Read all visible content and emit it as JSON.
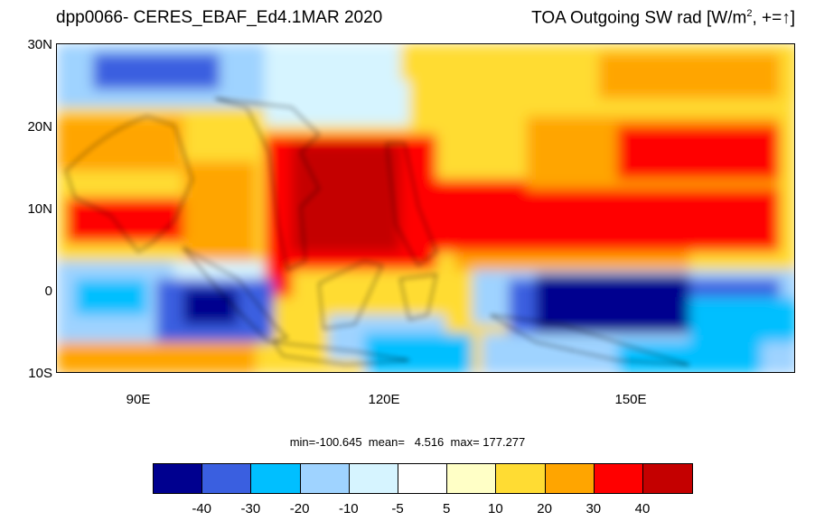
{
  "title": "dpp0066- CERES_EBAF_Ed4.1MAR 2020",
  "variable_title": "TOA Outgoing SW rad [W/m",
  "variable_title_sup": "2",
  "variable_title_suffix": ", +=↑]",
  "lat_labels": [
    "30N",
    "20N",
    "10N",
    "0",
    "10S"
  ],
  "lon_labels": [
    "90E",
    "120E",
    "150E"
  ],
  "stats_text": "min=-100.645  mean=   4.516  max= 177.277",
  "stats": {
    "min": -100.645,
    "mean": 4.516,
    "max": 177.277
  },
  "colorbar": {
    "colors": [
      "#00008f",
      "#3a5fe0",
      "#00bfff",
      "#9fd3ff",
      "#d6f4ff",
      "#ffffff",
      "#ffffc6",
      "#ffdc33",
      "#ffa500",
      "#ff0000",
      "#c40000"
    ],
    "labels": [
      "-40",
      "-30",
      "-20",
      "-10",
      "-5",
      "5",
      "10",
      "20",
      "30",
      "40"
    ]
  },
  "map_extent": {
    "lon_min": 80,
    "lon_max": 170,
    "lat_min": -10,
    "lat_max": 30
  }
}
